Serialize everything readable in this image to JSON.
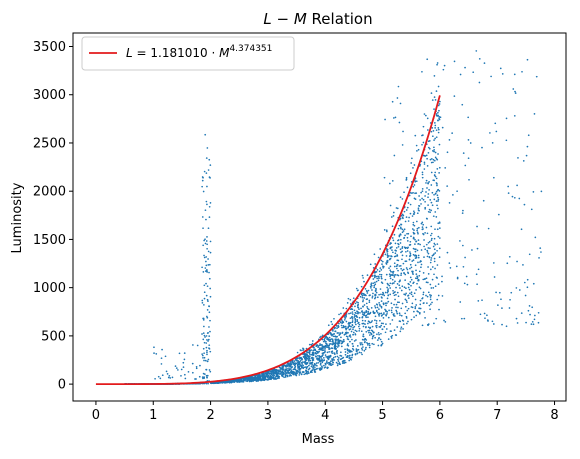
{
  "chart_data": {
    "type": "scatter",
    "title_left": "L",
    "title_op": " − ",
    "title_right": "M",
    "title_suffix": " Relation",
    "xlabel": "Mass",
    "ylabel": "Luminosity",
    "xlim": [
      -0.4,
      8.2
    ],
    "ylim": [
      -175,
      3640
    ],
    "xticks": [
      0,
      1,
      2,
      3,
      4,
      5,
      6,
      7,
      8
    ],
    "yticks": [
      0,
      500,
      1000,
      1500,
      2000,
      2500,
      3000,
      3500
    ],
    "grid": false,
    "legend_position": "top-left",
    "scatter_color": "#1f77b4",
    "fit_color": "#e31a1c",
    "fit": {
      "name_prefix": "L",
      "name_mid": " = 1.181010 · ",
      "name_var": "M",
      "name_exp": "4.374351",
      "coef": 1.18101,
      "exponent": 4.374351,
      "x_range": [
        0,
        6
      ]
    },
    "scatter_clusters": [
      {
        "x": [
          0.5,
          1.9
        ],
        "y_factor": [
          0.3,
          1.0
        ],
        "count": 500
      },
      {
        "x": [
          1.85,
          2.0
        ],
        "y": [
          0,
          2300
        ],
        "count": 130
      },
      {
        "x": [
          1.9,
          1.98
        ],
        "y": [
          2300,
          2670
        ],
        "count": 4
      },
      {
        "x": [
          2.0,
          6.0
        ],
        "y_factor": [
          0.3,
          1.0
        ],
        "count": 2200
      },
      {
        "x": [
          3.5,
          6.0
        ],
        "y_factor": [
          0.6,
          1.15
        ],
        "count": 350
      },
      {
        "x": [
          5.0,
          7.8
        ],
        "y": [
          600,
          3470
        ],
        "count": 220
      },
      {
        "x": [
          1.0,
          1.9
        ],
        "y": [
          50,
          430
        ],
        "count": 40
      }
    ]
  }
}
